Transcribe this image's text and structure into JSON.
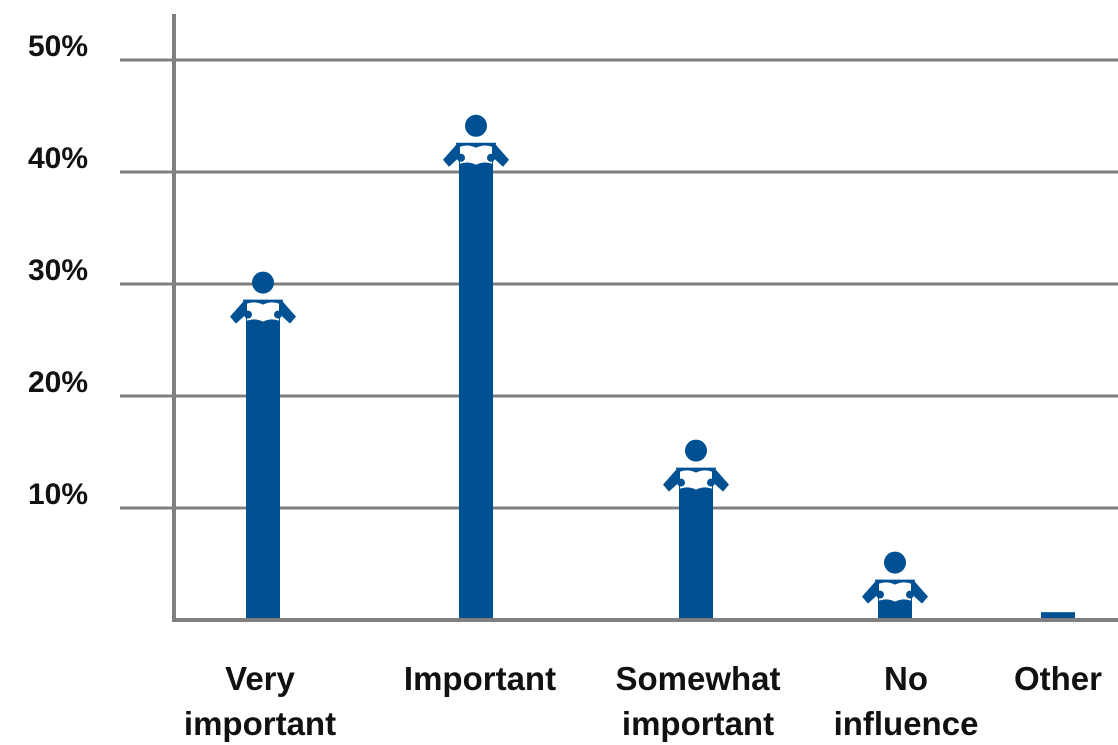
{
  "chart_data": {
    "type": "bar",
    "title": "",
    "xlabel": "",
    "ylabel": "",
    "categories": [
      [
        "Very",
        "important"
      ],
      [
        "Important"
      ],
      [
        "Somewhat",
        "important"
      ],
      [
        "No",
        "influence"
      ],
      [
        "Other"
      ]
    ],
    "values": [
      27,
      41,
      12,
      2,
      0.7
    ],
    "marker": [
      "reader-icon",
      "reader-icon",
      "reader-icon",
      "reader-icon",
      null
    ],
    "ylim": [
      0,
      50
    ],
    "yticks": [
      10,
      20,
      30,
      40,
      50
    ],
    "ytick_labels": [
      "10%",
      "20%",
      "30%",
      "40%",
      "50%"
    ],
    "grid": true,
    "legend": "none",
    "colors": {
      "bar": "#005193",
      "grid": "#808080",
      "axis": "#808080",
      "text": "#111111",
      "page": "#ffffff"
    }
  }
}
